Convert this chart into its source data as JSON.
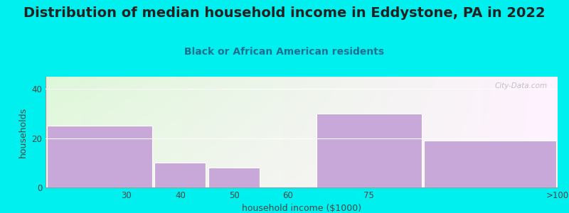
{
  "title": "Distribution of median household income in Eddystone, PA in 2022",
  "subtitle": "Black or African American residents",
  "xlabel": "household income ($1000)",
  "ylabel": "households",
  "categories": [
    "30",
    "40",
    "50",
    "60",
    "75",
    ">100"
  ],
  "bin_left": [
    15,
    35,
    45,
    55,
    65,
    85
  ],
  "bin_right": [
    35,
    45,
    55,
    65,
    85,
    110
  ],
  "values": [
    25,
    10,
    8,
    0,
    30,
    19
  ],
  "bar_color": "#c8a8d8",
  "bar_edge_color": "#ffffff",
  "background_color": "#00f0f0",
  "ylim": [
    0,
    45
  ],
  "yticks": [
    0,
    20,
    40
  ],
  "xlim": [
    15,
    110
  ],
  "xtick_positions": [
    30,
    40,
    50,
    60,
    75,
    110
  ],
  "xtick_labels": [
    "30",
    "40",
    "50",
    "60",
    "75",
    ">100"
  ],
  "title_fontsize": 14,
  "subtitle_fontsize": 10,
  "axis_label_fontsize": 9,
  "tick_fontsize": 8.5,
  "watermark": "City-Data.com"
}
